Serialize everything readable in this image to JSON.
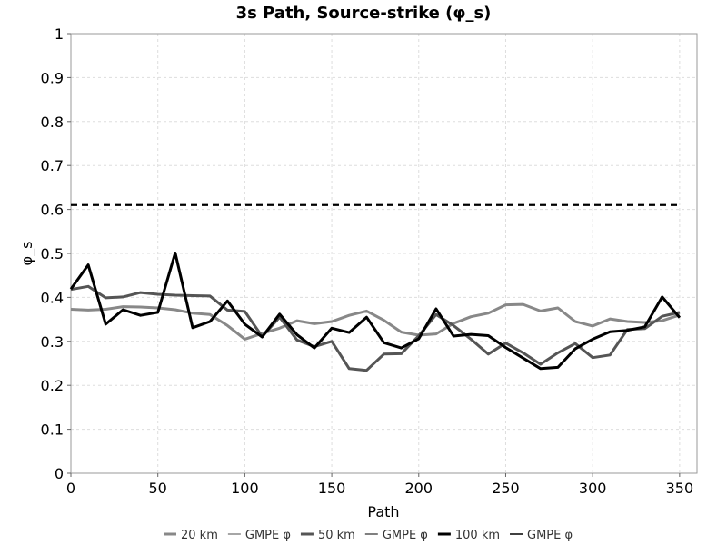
{
  "chart_data": {
    "type": "line",
    "title": "3s Path, Source-strike (φ_s)",
    "xlabel": "Path",
    "ylabel": "φ_s",
    "xlim": [
      0,
      360
    ],
    "ylim": [
      0,
      1
    ],
    "xticks": [
      0,
      50,
      100,
      150,
      200,
      250,
      300,
      350
    ],
    "yticks": [
      0,
      0.1,
      0.2,
      0.3,
      0.4,
      0.5,
      0.6,
      0.7,
      0.8,
      0.9,
      1
    ],
    "ytick_labels": [
      "0",
      "0.1",
      "0.2",
      "0.3",
      "0.4",
      "0.5",
      "0.6",
      "0.7",
      "0.8",
      "0.9",
      "1"
    ],
    "grid": true,
    "legend_position": "bottom",
    "x": [
      0,
      10,
      20,
      30,
      40,
      50,
      60,
      70,
      80,
      90,
      100,
      110,
      120,
      130,
      140,
      150,
      160,
      170,
      180,
      190,
      200,
      210,
      220,
      230,
      240,
      250,
      260,
      270,
      280,
      290,
      300,
      310,
      320,
      330,
      340,
      350
    ],
    "series": [
      {
        "name": "20 km",
        "color": "#888888",
        "dash": false,
        "values": [
          0.373,
          0.371,
          0.373,
          0.379,
          0.378,
          0.376,
          0.372,
          0.364,
          0.361,
          0.336,
          0.305,
          0.318,
          0.33,
          0.347,
          0.34,
          0.345,
          0.359,
          0.369,
          0.348,
          0.321,
          0.314,
          0.317,
          0.341,
          0.356,
          0.364,
          0.383,
          0.384,
          0.369,
          0.376,
          0.345,
          0.335,
          0.351,
          0.345,
          0.343,
          0.347,
          0.36
        ]
      },
      {
        "name": "GMPE φ",
        "color": "#888888",
        "dash": true,
        "values": [
          0.61,
          0.61,
          0.61,
          0.61,
          0.61,
          0.61,
          0.61,
          0.61,
          0.61,
          0.61,
          0.61,
          0.61,
          0.61,
          0.61,
          0.61,
          0.61,
          0.61,
          0.61,
          0.61,
          0.61,
          0.61,
          0.61,
          0.61,
          0.61,
          0.61,
          0.61,
          0.61,
          0.61,
          0.61,
          0.61,
          0.61,
          0.61,
          0.61,
          0.61,
          0.61,
          0.61
        ]
      },
      {
        "name": "50 km",
        "color": "#555555",
        "dash": false,
        "values": [
          0.418,
          0.425,
          0.399,
          0.401,
          0.411,
          0.407,
          0.405,
          0.404,
          0.403,
          0.371,
          0.368,
          0.311,
          0.355,
          0.303,
          0.288,
          0.3,
          0.238,
          0.234,
          0.271,
          0.272,
          0.313,
          0.361,
          0.336,
          0.305,
          0.271,
          0.296,
          0.274,
          0.248,
          0.274,
          0.295,
          0.263,
          0.269,
          0.327,
          0.329,
          0.357,
          0.366
        ]
      },
      {
        "name": "GMPE φ",
        "color": "#555555",
        "dash": true,
        "values": [
          0.61,
          0.61,
          0.61,
          0.61,
          0.61,
          0.61,
          0.61,
          0.61,
          0.61,
          0.61,
          0.61,
          0.61,
          0.61,
          0.61,
          0.61,
          0.61,
          0.61,
          0.61,
          0.61,
          0.61,
          0.61,
          0.61,
          0.61,
          0.61,
          0.61,
          0.61,
          0.61,
          0.61,
          0.61,
          0.61,
          0.61,
          0.61,
          0.61,
          0.61,
          0.61,
          0.61
        ]
      },
      {
        "name": "100 km",
        "color": "#000000",
        "dash": false,
        "values": [
          0.419,
          0.474,
          0.339,
          0.372,
          0.359,
          0.366,
          0.501,
          0.331,
          0.345,
          0.392,
          0.339,
          0.31,
          0.362,
          0.315,
          0.285,
          0.33,
          0.32,
          0.355,
          0.297,
          0.285,
          0.306,
          0.374,
          0.312,
          0.316,
          0.313,
          0.286,
          0.262,
          0.238,
          0.241,
          0.283,
          0.305,
          0.322,
          0.325,
          0.333,
          0.401,
          0.354
        ]
      },
      {
        "name": "GMPE φ",
        "color": "#000000",
        "dash": true,
        "values": [
          0.61,
          0.61,
          0.61,
          0.61,
          0.61,
          0.61,
          0.61,
          0.61,
          0.61,
          0.61,
          0.61,
          0.61,
          0.61,
          0.61,
          0.61,
          0.61,
          0.61,
          0.61,
          0.61,
          0.61,
          0.61,
          0.61,
          0.61,
          0.61,
          0.61,
          0.61,
          0.61,
          0.61,
          0.61,
          0.61,
          0.61,
          0.61,
          0.61,
          0.61,
          0.61,
          0.61
        ]
      }
    ]
  }
}
